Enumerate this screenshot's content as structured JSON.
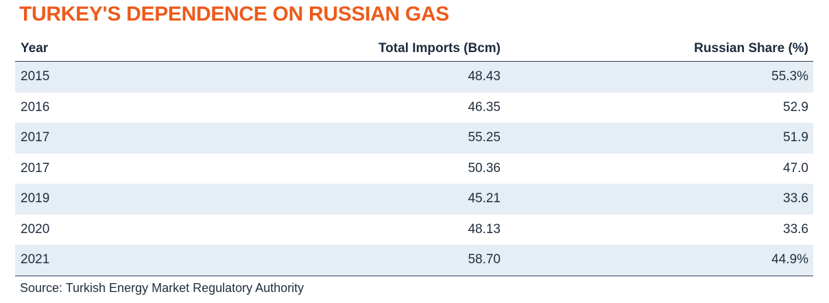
{
  "chart_data": {
    "type": "table",
    "title": "TURKEY'S DEPENDENCE ON RUSSIAN GAS",
    "columns": [
      "Year",
      "Total Imports (Bcm)",
      "Russian Share (%)"
    ],
    "rows": [
      [
        "2015",
        "48.43",
        "55.3%"
      ],
      [
        "2016",
        "46.35",
        "52.9"
      ],
      [
        "2017",
        "55.25",
        "51.9"
      ],
      [
        "2017",
        "50.36",
        "47.0"
      ],
      [
        "2019",
        "45.21",
        "33.6"
      ],
      [
        "2020",
        "48.13",
        "33.6"
      ],
      [
        "2021",
        "58.70",
        "44.9%"
      ]
    ],
    "source": "Source: Turkish Energy Market Regulatory Authority"
  },
  "colors": {
    "title": "#ee5a1a",
    "stripe": "#e5edf5",
    "text": "#1f2d3d",
    "rule": "#2b3f57"
  }
}
